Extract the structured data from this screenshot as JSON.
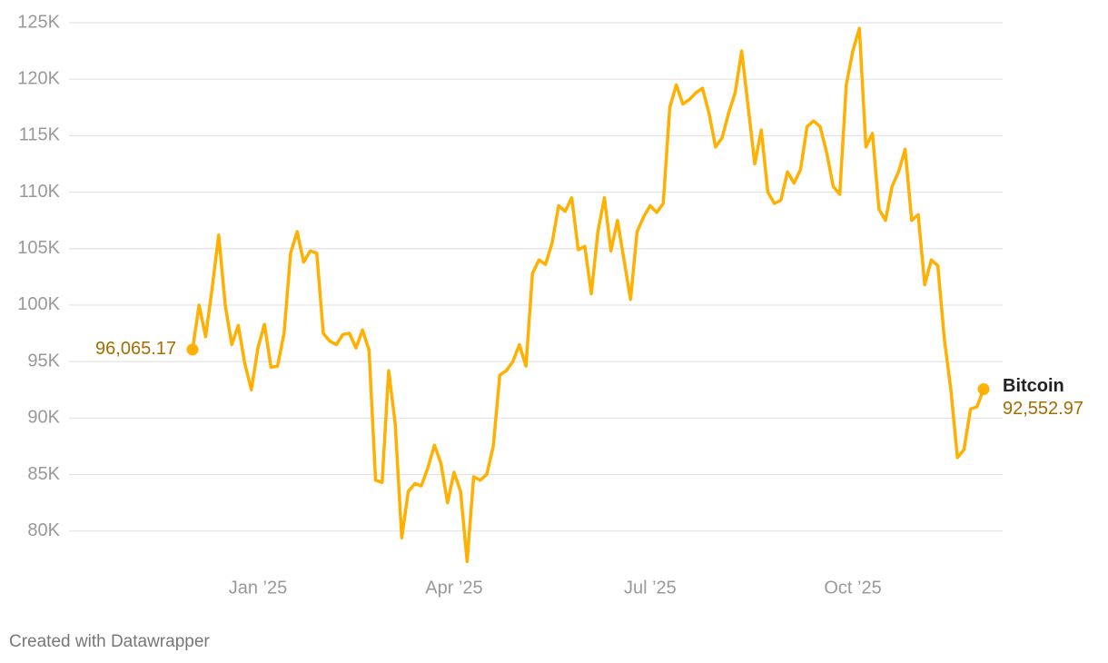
{
  "chart_data": {
    "type": "line",
    "categories": [
      null,
      null,
      null,
      null,
      null,
      null,
      null,
      null,
      null,
      null,
      "Jan ’25",
      null,
      null,
      null,
      null,
      null,
      null,
      null,
      null,
      null,
      null,
      null,
      null,
      null,
      null,
      null,
      null,
      null,
      null,
      null,
      null,
      null,
      null,
      null,
      null,
      null,
      null,
      null,
      null,
      null,
      "Apr ’25",
      null,
      null,
      null,
      null,
      null,
      null,
      null,
      null,
      null,
      null,
      null,
      null,
      null,
      null,
      null,
      null,
      null,
      null,
      null,
      null,
      null,
      null,
      null,
      null,
      null,
      null,
      null,
      null,
      null,
      "Jul ’25",
      null,
      null,
      null,
      null,
      null,
      null,
      null,
      null,
      null,
      null,
      null,
      null,
      null,
      null,
      null,
      null,
      null,
      null,
      null,
      null,
      null,
      null,
      null,
      null,
      null,
      null,
      null,
      null,
      null,
      null,
      "Oct ’25",
      null,
      null,
      null,
      null,
      null,
      null,
      null,
      null,
      null,
      null,
      null,
      null,
      null,
      null,
      null,
      null,
      null,
      null,
      null,
      null
    ],
    "series": [
      {
        "name": "Bitcoin",
        "color": "#ffb000",
        "values": [
          96065.17,
          100000,
          97200,
          101500,
          106200,
          100000,
          96500,
          98200,
          94800,
          92500,
          96200,
          98300,
          94500,
          94600,
          97500,
          104600,
          106500,
          103800,
          104800,
          104600,
          97500,
          96800,
          96500,
          97400,
          97500,
          96200,
          97800,
          96000,
          84500,
          84300,
          94200,
          89500,
          79400,
          83500,
          84200,
          84000,
          85600,
          87600,
          86000,
          82500,
          85200,
          83500,
          77300,
          84800,
          84500,
          85000,
          87500,
          93800,
          94200,
          95000,
          96500,
          94600,
          102800,
          104000,
          103600,
          105500,
          108800,
          108300,
          109500,
          104900,
          105200,
          101000,
          106500,
          109500,
          104800,
          107500,
          104000,
          100500,
          106500,
          107800,
          108800,
          108200,
          109000,
          117500,
          119500,
          117800,
          118200,
          118800,
          119200,
          117000,
          114000,
          114800,
          117000,
          118800,
          122500,
          117500,
          112500,
          115500,
          110000,
          109000,
          109300,
          111800,
          110800,
          112000,
          115800,
          116300,
          115800,
          113500,
          110500,
          109800,
          119500,
          122500,
          124500,
          114000,
          115200,
          108500,
          107500,
          110500,
          111800,
          113800,
          107500,
          108000,
          101800,
          104000,
          103500,
          97000,
          92500,
          86500,
          87200,
          90800,
          91000,
          92552.97
        ],
        "value_labels": [
          "96,065.17",
          null,
          null,
          null,
          null,
          null,
          null,
          null,
          null,
          null,
          null,
          null,
          null,
          null,
          null,
          null,
          null,
          null,
          null,
          null,
          null,
          null,
          null,
          null,
          null,
          null,
          null,
          null,
          null,
          null,
          null,
          null,
          null,
          null,
          null,
          null,
          null,
          null,
          null,
          null,
          null,
          null,
          null,
          null,
          null,
          null,
          null,
          null,
          null,
          null,
          null,
          null,
          null,
          null,
          null,
          null,
          null,
          null,
          null,
          null,
          null,
          null,
          null,
          null,
          null,
          null,
          null,
          null,
          null,
          null,
          null,
          null,
          null,
          null,
          null,
          null,
          null,
          null,
          null,
          null,
          null,
          null,
          null,
          null,
          null,
          null,
          null,
          null,
          null,
          null,
          null,
          null,
          null,
          null,
          null,
          null,
          null,
          null,
          null,
          null,
          null,
          null,
          null,
          null,
          null,
          null,
          null,
          null,
          null,
          null,
          null,
          null,
          null,
          null,
          null,
          null,
          null,
          null,
          null,
          null,
          null,
          "92,552.97"
        ]
      }
    ],
    "ylim": [
      77000,
      125000
    ],
    "yticks": [
      {
        "value": 80000,
        "label": "80K"
      },
      {
        "value": 85000,
        "label": "85K"
      },
      {
        "value": 90000,
        "label": "90K"
      },
      {
        "value": 95000,
        "label": "95K"
      },
      {
        "value": 100000,
        "label": "100K"
      },
      {
        "value": 105000,
        "label": "105K"
      },
      {
        "value": 110000,
        "label": "110K"
      },
      {
        "value": 115000,
        "label": "115K"
      },
      {
        "value": 120000,
        "label": "120K"
      },
      {
        "value": 125000,
        "label": "125K"
      }
    ],
    "grid": true,
    "credit": "Created with Datawrapper"
  }
}
